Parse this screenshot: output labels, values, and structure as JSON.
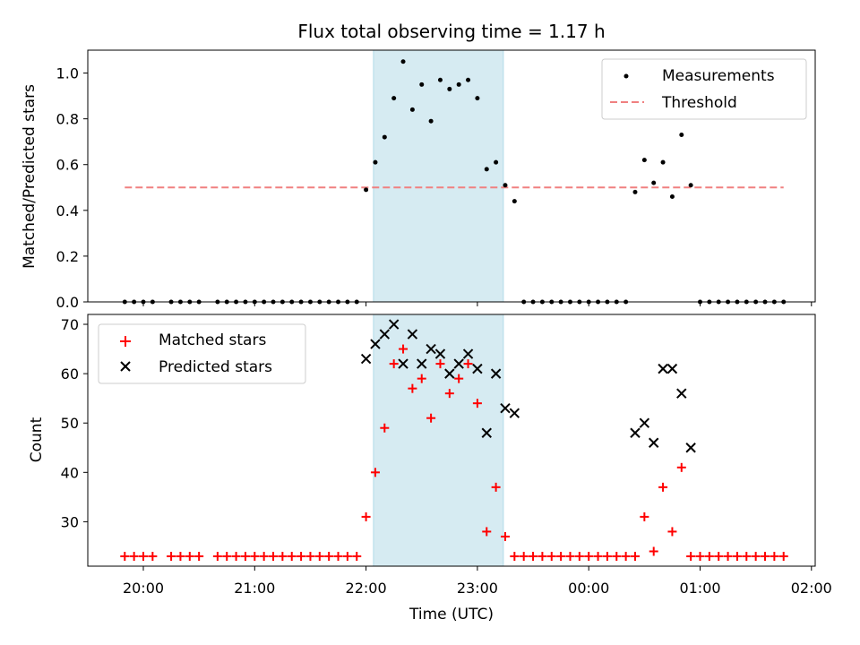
{
  "chart_data": [
    {
      "type": "scatter",
      "title": "Flux total observing time = 1.17 h",
      "ylabel": "Matched/Predicted stars",
      "ylim": [
        0,
        1.1
      ],
      "yticks": [
        "0.0",
        "0.2",
        "0.4",
        "0.6",
        "0.8",
        "1.0"
      ],
      "highlight_span": [
        "22:04",
        "23:14"
      ],
      "legend_placement": "upper-right",
      "threshold": {
        "name": "Threshold",
        "value": 0.5,
        "x_range": [
          "19:50",
          "01:45"
        ],
        "color": "#f08080"
      },
      "series": [
        {
          "name": "Measurements",
          "color": "#000000",
          "points": [
            [
              "19:50",
              0
            ],
            [
              "19:55",
              0
            ],
            [
              "20:00",
              0
            ],
            [
              "20:05",
              0
            ],
            [
              "20:15",
              0
            ],
            [
              "20:20",
              0
            ],
            [
              "20:25",
              0
            ],
            [
              "20:30",
              0
            ],
            [
              "20:40",
              0
            ],
            [
              "20:45",
              0
            ],
            [
              "20:50",
              0
            ],
            [
              "20:55",
              0
            ],
            [
              "21:00",
              0
            ],
            [
              "21:05",
              0
            ],
            [
              "21:10",
              0
            ],
            [
              "21:15",
              0
            ],
            [
              "21:20",
              0
            ],
            [
              "21:25",
              0
            ],
            [
              "21:30",
              0
            ],
            [
              "21:35",
              0
            ],
            [
              "21:40",
              0
            ],
            [
              "21:45",
              0
            ],
            [
              "21:50",
              0
            ],
            [
              "21:55",
              0
            ],
            [
              "22:00",
              0.49
            ],
            [
              "22:05",
              0.61
            ],
            [
              "22:10",
              0.72
            ],
            [
              "22:15",
              0.89
            ],
            [
              "22:20",
              1.05
            ],
            [
              "22:25",
              0.84
            ],
            [
              "22:30",
              0.95
            ],
            [
              "22:35",
              0.79
            ],
            [
              "22:40",
              0.97
            ],
            [
              "22:45",
              0.93
            ],
            [
              "22:50",
              0.95
            ],
            [
              "22:55",
              0.97
            ],
            [
              "23:00",
              0.89
            ],
            [
              "23:05",
              0.58
            ],
            [
              "23:10",
              0.61
            ],
            [
              "23:15",
              0.51
            ],
            [
              "23:20",
              0.44
            ],
            [
              "23:25",
              0
            ],
            [
              "23:30",
              0
            ],
            [
              "23:35",
              0
            ],
            [
              "23:40",
              0
            ],
            [
              "23:45",
              0
            ],
            [
              "23:50",
              0
            ],
            [
              "23:55",
              0
            ],
            [
              "00:00",
              0
            ],
            [
              "00:05",
              0
            ],
            [
              "00:10",
              0
            ],
            [
              "00:15",
              0
            ],
            [
              "00:20",
              0
            ],
            [
              "00:25",
              0.48
            ],
            [
              "00:30",
              0.62
            ],
            [
              "00:35",
              0.52
            ],
            [
              "00:40",
              0.61
            ],
            [
              "00:45",
              0.46
            ],
            [
              "00:50",
              0.73
            ],
            [
              "00:55",
              0.51
            ],
            [
              "01:00",
              0
            ],
            [
              "01:05",
              0
            ],
            [
              "01:10",
              0
            ],
            [
              "01:15",
              0
            ],
            [
              "01:20",
              0
            ],
            [
              "01:25",
              0
            ],
            [
              "01:30",
              0
            ],
            [
              "01:35",
              0
            ],
            [
              "01:40",
              0
            ],
            [
              "01:45",
              0
            ]
          ]
        }
      ]
    },
    {
      "type": "scatter",
      "xlabel": "Time (UTC)",
      "ylabel": "Count",
      "ylim": [
        21,
        72
      ],
      "yticks": [
        "30",
        "40",
        "50",
        "60",
        "70"
      ],
      "xticks": [
        "20:00",
        "21:00",
        "22:00",
        "23:00",
        "00:00",
        "01:00",
        "02:00"
      ],
      "highlight_span": [
        "22:04",
        "23:14"
      ],
      "legend_placement": "upper-left",
      "series": [
        {
          "name": "Matched stars",
          "marker": "plus",
          "color": "#ff0000",
          "points": [
            [
              "19:50",
              23
            ],
            [
              "19:55",
              23
            ],
            [
              "20:00",
              23
            ],
            [
              "20:05",
              23
            ],
            [
              "20:15",
              23
            ],
            [
              "20:20",
              23
            ],
            [
              "20:25",
              23
            ],
            [
              "20:30",
              23
            ],
            [
              "20:40",
              23
            ],
            [
              "20:45",
              23
            ],
            [
              "20:50",
              23
            ],
            [
              "20:55",
              23
            ],
            [
              "21:00",
              23
            ],
            [
              "21:05",
              23
            ],
            [
              "21:10",
              23
            ],
            [
              "21:15",
              23
            ],
            [
              "21:20",
              23
            ],
            [
              "21:25",
              23
            ],
            [
              "21:30",
              23
            ],
            [
              "21:35",
              23
            ],
            [
              "21:40",
              23
            ],
            [
              "21:45",
              23
            ],
            [
              "21:50",
              23
            ],
            [
              "21:55",
              23
            ],
            [
              "22:00",
              31
            ],
            [
              "22:05",
              40
            ],
            [
              "22:10",
              49
            ],
            [
              "22:15",
              62
            ],
            [
              "22:20",
              65
            ],
            [
              "22:25",
              57
            ],
            [
              "22:30",
              59
            ],
            [
              "22:35",
              51
            ],
            [
              "22:40",
              62
            ],
            [
              "22:45",
              56
            ],
            [
              "22:50",
              59
            ],
            [
              "22:55",
              62
            ],
            [
              "23:00",
              54
            ],
            [
              "23:05",
              28
            ],
            [
              "23:10",
              37
            ],
            [
              "23:15",
              27
            ],
            [
              "23:20",
              23
            ],
            [
              "23:25",
              23
            ],
            [
              "23:30",
              23
            ],
            [
              "23:35",
              23
            ],
            [
              "23:40",
              23
            ],
            [
              "23:45",
              23
            ],
            [
              "23:50",
              23
            ],
            [
              "23:55",
              23
            ],
            [
              "00:00",
              23
            ],
            [
              "00:05",
              23
            ],
            [
              "00:10",
              23
            ],
            [
              "00:15",
              23
            ],
            [
              "00:20",
              23
            ],
            [
              "00:25",
              23
            ],
            [
              "00:30",
              31
            ],
            [
              "00:35",
              24
            ],
            [
              "00:40",
              37
            ],
            [
              "00:45",
              28
            ],
            [
              "00:50",
              41
            ],
            [
              "00:55",
              23
            ],
            [
              "01:00",
              23
            ],
            [
              "01:05",
              23
            ],
            [
              "01:10",
              23
            ],
            [
              "01:15",
              23
            ],
            [
              "01:20",
              23
            ],
            [
              "01:25",
              23
            ],
            [
              "01:30",
              23
            ],
            [
              "01:35",
              23
            ],
            [
              "01:40",
              23
            ],
            [
              "01:45",
              23
            ]
          ]
        },
        {
          "name": "Predicted stars",
          "marker": "x",
          "color": "#000000",
          "points": [
            [
              "22:00",
              63
            ],
            [
              "22:05",
              66
            ],
            [
              "22:10",
              68
            ],
            [
              "22:15",
              70
            ],
            [
              "22:20",
              62
            ],
            [
              "22:25",
              68
            ],
            [
              "22:30",
              62
            ],
            [
              "22:35",
              65
            ],
            [
              "22:40",
              64
            ],
            [
              "22:45",
              60
            ],
            [
              "22:50",
              62
            ],
            [
              "22:55",
              64
            ],
            [
              "23:00",
              61
            ],
            [
              "23:05",
              48
            ],
            [
              "23:10",
              60
            ],
            [
              "23:15",
              53
            ],
            [
              "23:20",
              52
            ],
            [
              "00:25",
              48
            ],
            [
              "00:30",
              50
            ],
            [
              "00:35",
              46
            ],
            [
              "00:40",
              61
            ],
            [
              "00:45",
              61
            ],
            [
              "00:50",
              56
            ],
            [
              "00:55",
              45
            ]
          ]
        }
      ]
    }
  ]
}
